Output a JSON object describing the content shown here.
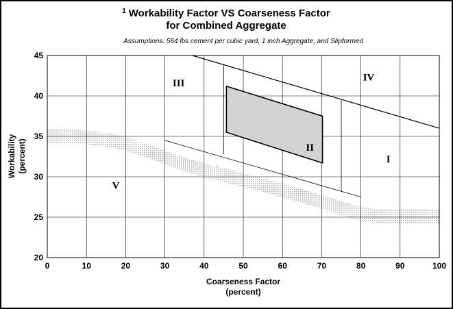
{
  "chart_data": {
    "type": "line",
    "title_superscript": "1",
    "title_line1": "Workability Factor VS Coarseness Factor",
    "title_line2": "for Combined Aggregate",
    "subtitle": "Assumptions: 564 lbs cement per cubic yard, 1 inch Aggregate,  and Slipformed",
    "xlabel_line1": "Coarseness Factor",
    "xlabel_line2": "(percent)",
    "ylabel_line1": "Workability",
    "ylabel_line2": "(percent)",
    "xlim": [
      0,
      100
    ],
    "ylim": [
      20,
      45
    ],
    "x_ticks": [
      "0",
      "10",
      "20",
      "30",
      "40",
      "50",
      "60",
      "70",
      "80",
      "90",
      "100"
    ],
    "y_ticks": [
      "20",
      "25",
      "30",
      "35",
      "40",
      "45"
    ],
    "grid": true,
    "upper_boundary_line": {
      "x": [
        37,
        100
      ],
      "y": [
        45,
        36
      ]
    },
    "lower_boundary_line": {
      "x": [
        30,
        80
      ],
      "y": [
        34.5,
        27.5
      ]
    },
    "zone_dividers": [
      {
        "x": [
          45,
          45
        ],
        "y": [
          43.8,
          32.8
        ]
      },
      {
        "x": [
          75,
          75
        ],
        "y": [
          39.5,
          28.2
        ]
      }
    ],
    "optimal_zone_II": {
      "x": [
        45.7,
        70.2,
        70.2,
        45.7
      ],
      "y": [
        41.2,
        37.5,
        31.7,
        35.5
      ],
      "fill": "#d3d3d3"
    },
    "well_graded_band": {
      "x": [
        0,
        5,
        10,
        15,
        20,
        25,
        30,
        35,
        40,
        45,
        50,
        55,
        60,
        65,
        70,
        75,
        80,
        85,
        90,
        95,
        100
      ],
      "y": [
        35.0,
        35.0,
        34.9,
        34.6,
        34.1,
        33.3,
        32.4,
        31.5,
        30.8,
        30.2,
        29.6,
        29.0,
        28.3,
        27.6,
        26.9,
        26.1,
        25.4,
        25.1,
        25.1,
        25.1,
        25.1
      ]
    },
    "zones": [
      {
        "label": "I",
        "x": 87,
        "y": 31.8
      },
      {
        "label": "II",
        "x": 67,
        "y": 33.2
      },
      {
        "label": "III",
        "x": 33.5,
        "y": 41.2
      },
      {
        "label": "IV",
        "x": 82,
        "y": 41.9
      },
      {
        "label": "V",
        "x": 17.5,
        "y": 28.5
      }
    ],
    "colors": {
      "axis": "#000000",
      "grid": "#000000",
      "zone_fill": "#d3d3d3",
      "band": "#bdbdbd"
    }
  }
}
